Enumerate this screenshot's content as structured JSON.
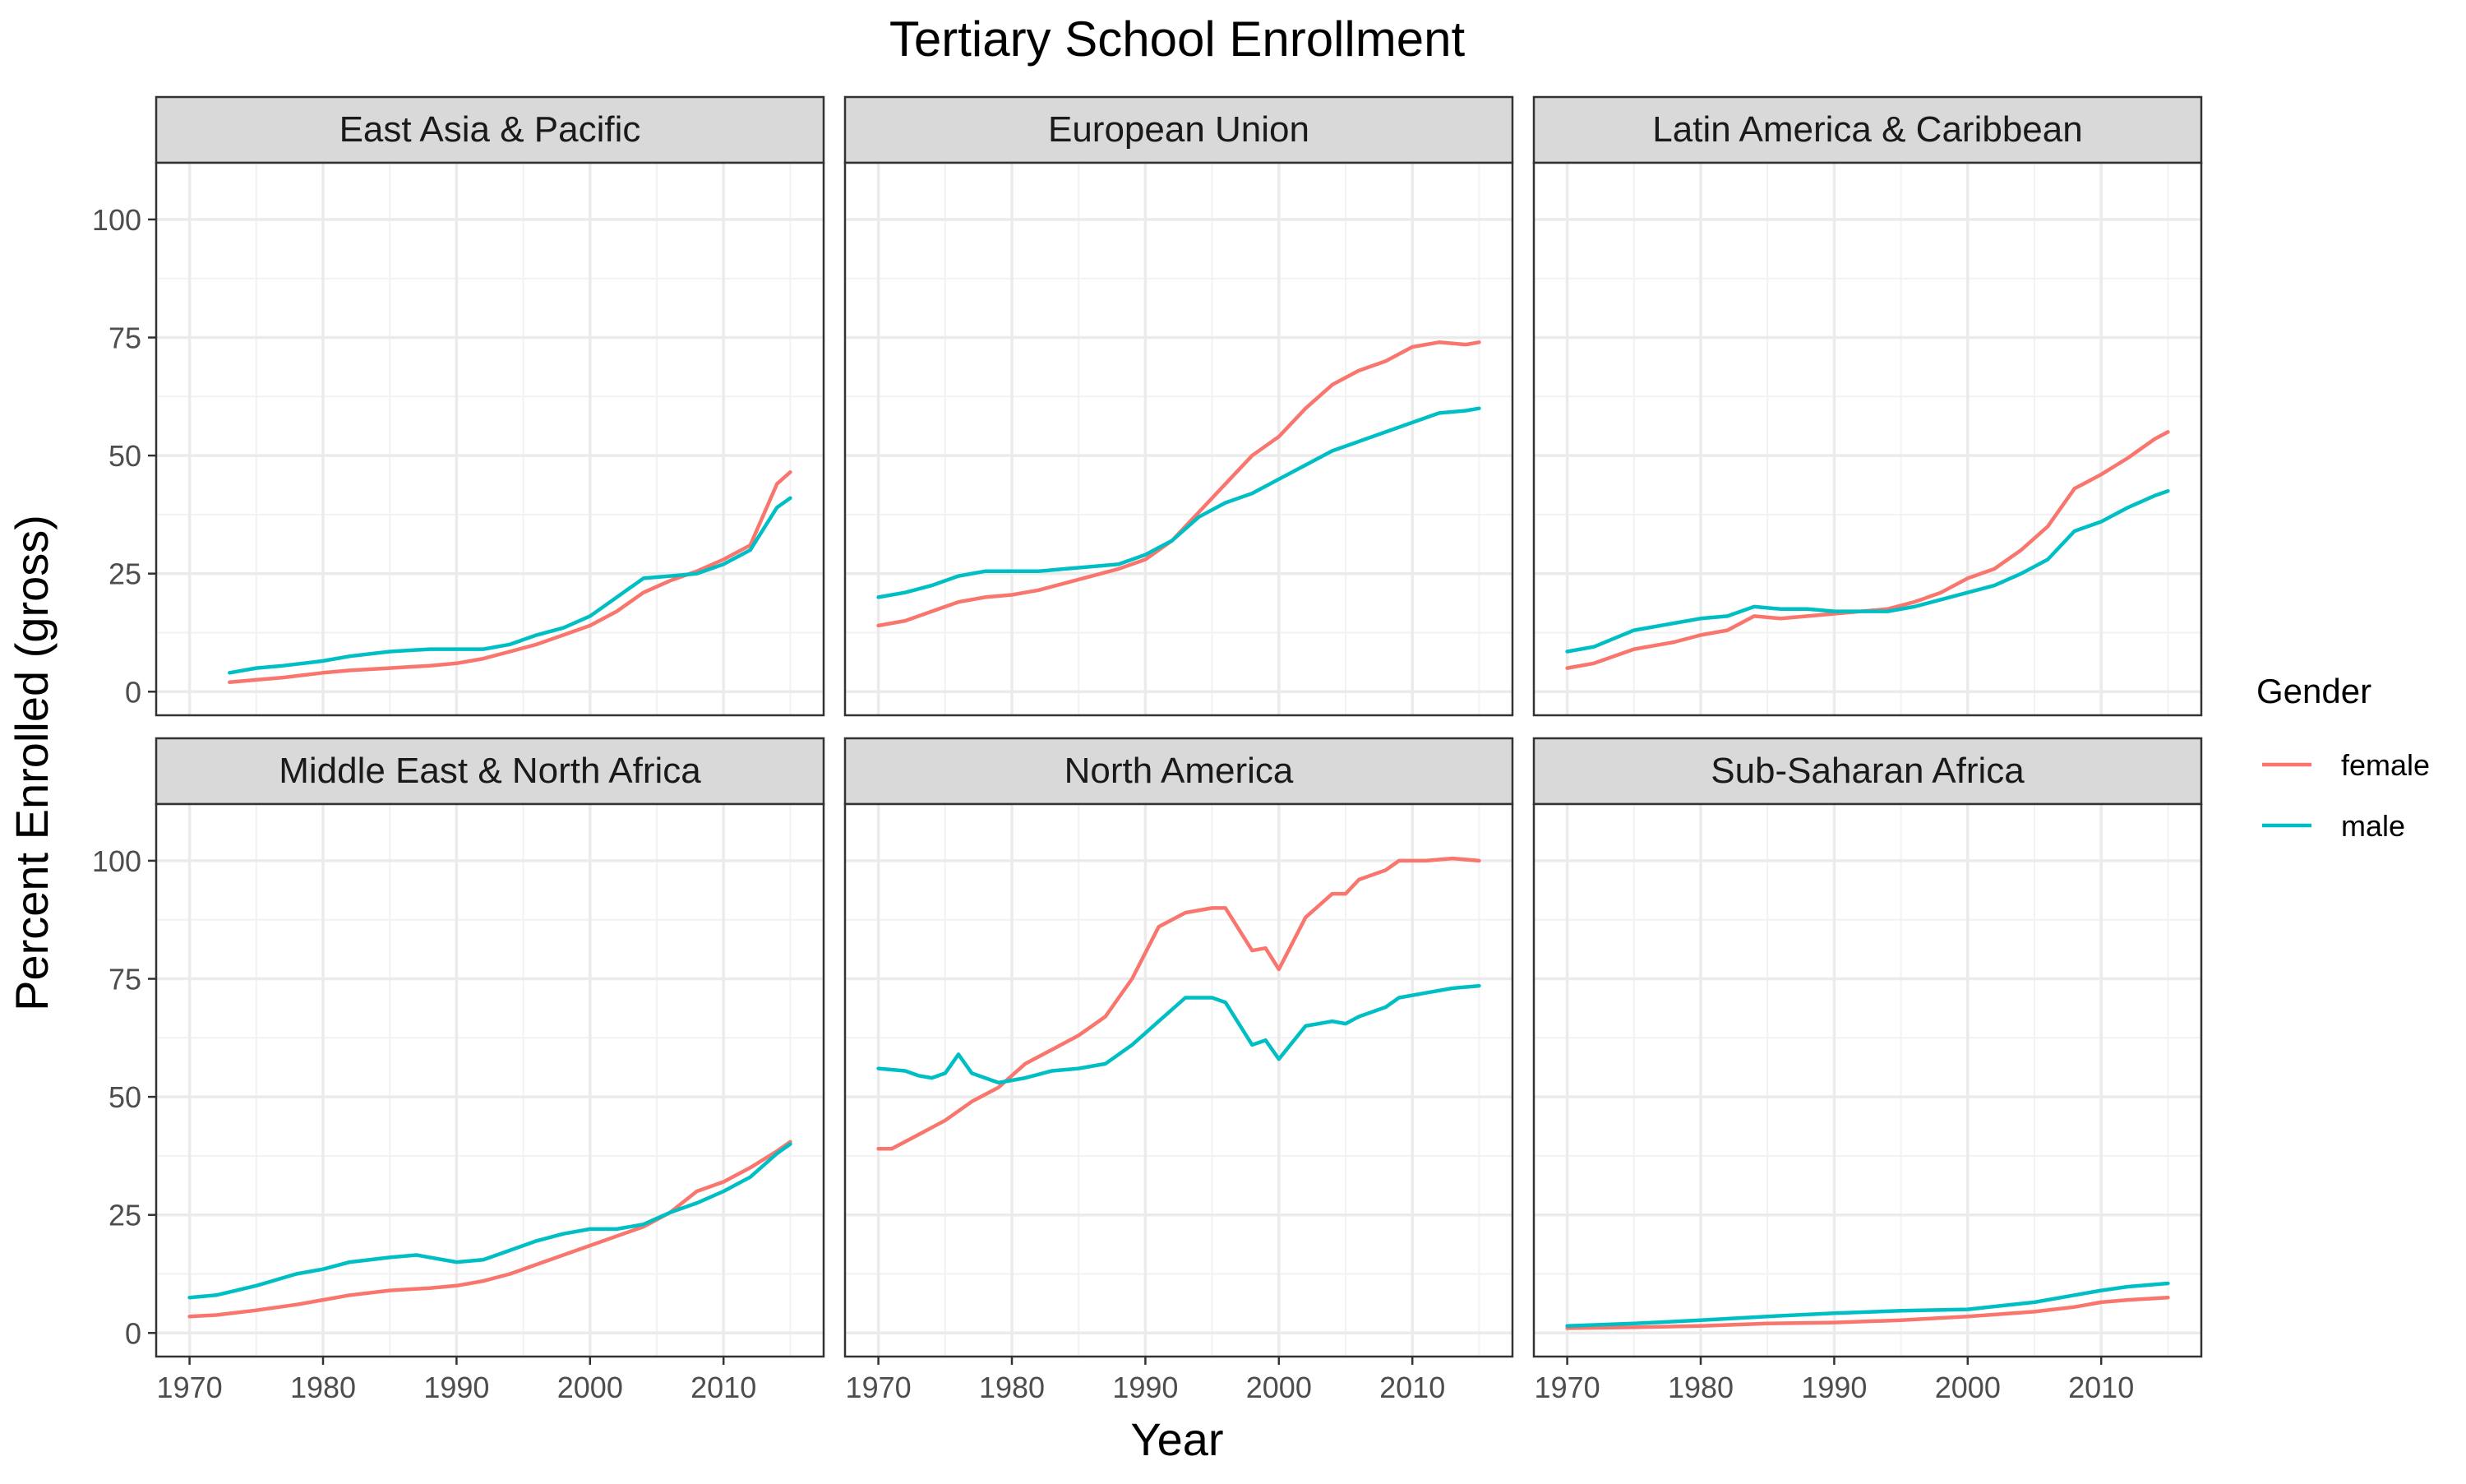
{
  "chart_data": {
    "type": "line",
    "title": "Tertiary School Enrollment",
    "xlabel": "Year",
    "ylabel": "Percent Enrolled (gross)",
    "xlim": [
      1967.5,
      2017.5
    ],
    "ylim": [
      -5,
      112
    ],
    "xticks": [
      1970,
      1980,
      1990,
      2000,
      2010
    ],
    "yticks": [
      0,
      25,
      50,
      75,
      100
    ],
    "grid": true,
    "legend": {
      "title": "Gender",
      "position": "right",
      "entries": [
        {
          "label": "female",
          "color": "#F8766D"
        },
        {
          "label": "male",
          "color": "#00BFC4"
        }
      ]
    },
    "colors": {
      "female": "#F8766D",
      "male": "#00BFC4"
    },
    "panels": [
      {
        "name": "East Asia & Pacific",
        "series": [
          {
            "name": "female",
            "x": [
              1973,
              1975,
              1977,
              1980,
              1982,
              1985,
              1988,
              1990,
              1992,
              1994,
              1996,
              1998,
              2000,
              2002,
              2004,
              2006,
              2008,
              2010,
              2012,
              2014,
              2015
            ],
            "y": [
              2,
              2.5,
              3,
              4,
              4.5,
              5,
              5.5,
              6,
              7,
              8.5,
              10,
              12,
              14,
              17,
              21,
              23.5,
              25.5,
              28,
              31,
              44,
              46.5
            ]
          },
          {
            "name": "male",
            "x": [
              1973,
              1975,
              1977,
              1980,
              1982,
              1985,
              1988,
              1990,
              1992,
              1994,
              1996,
              1998,
              2000,
              2002,
              2004,
              2006,
              2008,
              2010,
              2012,
              2014,
              2015
            ],
            "y": [
              4,
              5,
              5.5,
              6.5,
              7.5,
              8.5,
              9,
              9,
              9,
              10,
              12,
              13.5,
              16,
              20,
              24,
              24.5,
              25,
              27,
              30,
              39,
              41
            ]
          }
        ]
      },
      {
        "name": "European Union",
        "series": [
          {
            "name": "female",
            "x": [
              1970,
              1972,
              1974,
              1976,
              1978,
              1980,
              1982,
              1984,
              1986,
              1988,
              1990,
              1992,
              1994,
              1996,
              1998,
              2000,
              2002,
              2004,
              2006,
              2008,
              2010,
              2012,
              2014,
              2015
            ],
            "y": [
              14,
              15,
              17,
              19,
              20,
              20.5,
              21.5,
              23,
              24.5,
              26,
              28,
              32,
              38,
              44,
              50,
              54,
              60,
              65,
              68,
              70,
              73,
              74,
              73.5,
              74
            ]
          },
          {
            "name": "male",
            "x": [
              1970,
              1972,
              1974,
              1976,
              1978,
              1980,
              1982,
              1984,
              1986,
              1988,
              1990,
              1992,
              1994,
              1996,
              1998,
              2000,
              2002,
              2004,
              2006,
              2008,
              2010,
              2012,
              2014,
              2015
            ],
            "y": [
              20,
              21,
              22.5,
              24.5,
              25.5,
              25.5,
              25.5,
              26,
              26.5,
              27,
              29,
              32,
              37,
              40,
              42,
              45,
              48,
              51,
              53,
              55,
              57,
              59,
              59.5,
              60
            ]
          }
        ]
      },
      {
        "name": "Latin America & Caribbean",
        "series": [
          {
            "name": "female",
            "x": [
              1970,
              1972,
              1975,
              1978,
              1980,
              1982,
              1984,
              1986,
              1988,
              1990,
              1992,
              1994,
              1996,
              1998,
              2000,
              2002,
              2004,
              2006,
              2008,
              2010,
              2012,
              2014,
              2015
            ],
            "y": [
              5,
              6,
              9,
              10.5,
              12,
              13,
              16,
              15.5,
              16,
              16.5,
              17,
              17.5,
              19,
              21,
              24,
              26,
              30,
              35,
              43,
              46,
              49.5,
              53.5,
              55
            ]
          },
          {
            "name": "male",
            "x": [
              1970,
              1972,
              1975,
              1978,
              1980,
              1982,
              1984,
              1986,
              1988,
              1990,
              1992,
              1994,
              1996,
              1998,
              2000,
              2002,
              2004,
              2006,
              2008,
              2010,
              2012,
              2014,
              2015
            ],
            "y": [
              8.5,
              9.5,
              13,
              14.5,
              15.5,
              16,
              18,
              17.5,
              17.5,
              17,
              17,
              17,
              18,
              19.5,
              21,
              22.5,
              25,
              28,
              34,
              36,
              39,
              41.5,
              42.5
            ]
          }
        ]
      },
      {
        "name": "Middle East & North Africa",
        "series": [
          {
            "name": "female",
            "x": [
              1970,
              1972,
              1975,
              1978,
              1980,
              1982,
              1985,
              1988,
              1990,
              1992,
              1994,
              1996,
              1998,
              2000,
              2002,
              2004,
              2006,
              2008,
              2010,
              2012,
              2014,
              2015
            ],
            "y": [
              3.5,
              3.8,
              4.8,
              6,
              7,
              8,
              9,
              9.5,
              10,
              11,
              12.5,
              14.5,
              16.5,
              18.5,
              20.5,
              22.5,
              25.5,
              30,
              32,
              35,
              38.5,
              40.5
            ]
          },
          {
            "name": "male",
            "x": [
              1970,
              1972,
              1975,
              1978,
              1980,
              1982,
              1985,
              1987,
              1990,
              1992,
              1994,
              1996,
              1998,
              2000,
              2002,
              2004,
              2006,
              2008,
              2010,
              2012,
              2014,
              2015
            ],
            "y": [
              7.5,
              8,
              10,
              12.5,
              13.5,
              15,
              16,
              16.5,
              15,
              15.5,
              17.5,
              19.5,
              21,
              22,
              22,
              23,
              25.5,
              27.5,
              30,
              33,
              38,
              40
            ]
          }
        ]
      },
      {
        "name": "North America",
        "series": [
          {
            "name": "female",
            "x": [
              1970,
              1971,
              1973,
              1975,
              1977,
              1979,
              1981,
              1983,
              1985,
              1987,
              1989,
              1991,
              1993,
              1995,
              1996,
              1998,
              1999,
              2000,
              2002,
              2004,
              2005,
              2006,
              2008,
              2009,
              2011,
              2013,
              2015
            ],
            "y": [
              39,
              39,
              42,
              45,
              49,
              52,
              57,
              60,
              63,
              67,
              75,
              86,
              89,
              90,
              90,
              81,
              81.5,
              77,
              88,
              93,
              93,
              96,
              98,
              100,
              100,
              100.5,
              100
            ]
          },
          {
            "name": "male",
            "x": [
              1970,
              1972,
              1973,
              1974,
              1975,
              1976,
              1977,
              1978,
              1979,
              1981,
              1983,
              1985,
              1987,
              1989,
              1991,
              1993,
              1995,
              1996,
              1998,
              1999,
              2000,
              2002,
              2004,
              2005,
              2006,
              2008,
              2009,
              2011,
              2013,
              2015
            ],
            "y": [
              56,
              55.5,
              54.5,
              54,
              55,
              59,
              55,
              54,
              53,
              54,
              55.5,
              56,
              57,
              61,
              66,
              71,
              71,
              70,
              61,
              62,
              58,
              65,
              66,
              65.5,
              67,
              69,
              71,
              72,
              73,
              73.5
            ]
          }
        ]
      },
      {
        "name": "Sub-Saharan Africa",
        "series": [
          {
            "name": "female",
            "x": [
              1970,
              1975,
              1980,
              1985,
              1990,
              1995,
              2000,
              2005,
              2008,
              2010,
              2012,
              2015
            ],
            "y": [
              1,
              1.2,
              1.5,
              2,
              2.2,
              2.7,
              3.5,
              4.5,
              5.5,
              6.5,
              7,
              7.5
            ]
          },
          {
            "name": "male",
            "x": [
              1970,
              1975,
              1980,
              1985,
              1990,
              1995,
              2000,
              2005,
              2008,
              2010,
              2012,
              2015
            ],
            "y": [
              1.5,
              2,
              2.7,
              3.5,
              4.2,
              4.7,
              5,
              6.5,
              8,
              9,
              9.8,
              10.5
            ]
          }
        ]
      }
    ]
  }
}
